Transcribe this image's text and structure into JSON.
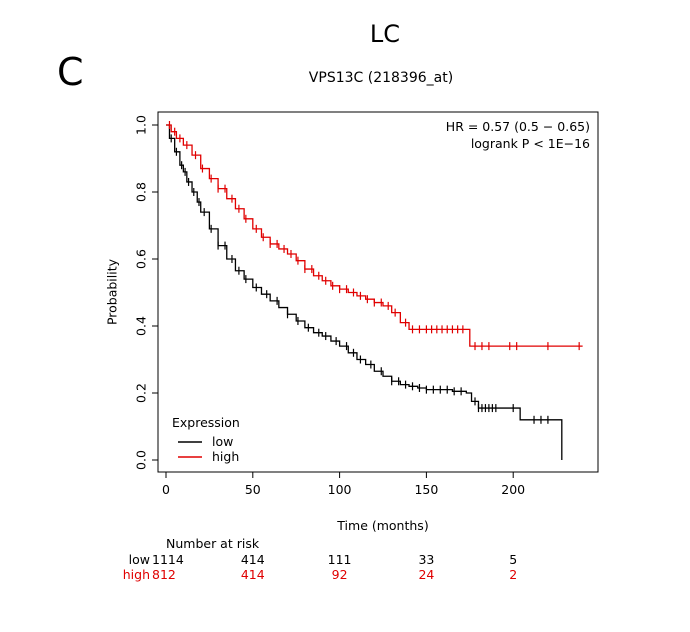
{
  "page": {
    "panel_letter": "C",
    "title": "LC"
  },
  "chart_data": {
    "type": "line",
    "title": "VPS13C (218396_at)",
    "xlabel": "Time (months)",
    "ylabel": "Probability",
    "xlim": [
      0,
      250
    ],
    "ylim": [
      0,
      1.0
    ],
    "x_ticks": [
      "0",
      "50",
      "100",
      "150",
      "200"
    ],
    "y_ticks": [
      "0.0",
      "0.2",
      "0.4",
      "0.6",
      "0.8",
      "1.0"
    ],
    "annotation": {
      "line1": "HR = 0.57 (0.5 − 0.65)",
      "line2": "logrank P < 1E−16"
    },
    "legend": {
      "title": "Expression",
      "position": "bottom-left"
    },
    "series": [
      {
        "name": "low",
        "color": "#000000",
        "points": [
          [
            0,
            1.0
          ],
          [
            2,
            0.96
          ],
          [
            5,
            0.92
          ],
          [
            8,
            0.88
          ],
          [
            10,
            0.86
          ],
          [
            12,
            0.83
          ],
          [
            15,
            0.8
          ],
          [
            18,
            0.77
          ],
          [
            20,
            0.74
          ],
          [
            25,
            0.69
          ],
          [
            30,
            0.64
          ],
          [
            35,
            0.6
          ],
          [
            40,
            0.565
          ],
          [
            45,
            0.54
          ],
          [
            50,
            0.515
          ],
          [
            55,
            0.495
          ],
          [
            60,
            0.475
          ],
          [
            65,
            0.455
          ],
          [
            70,
            0.435
          ],
          [
            75,
            0.415
          ],
          [
            80,
            0.395
          ],
          [
            85,
            0.38
          ],
          [
            90,
            0.37
          ],
          [
            95,
            0.355
          ],
          [
            100,
            0.34
          ],
          [
            105,
            0.32
          ],
          [
            110,
            0.3
          ],
          [
            115,
            0.285
          ],
          [
            120,
            0.265
          ],
          [
            125,
            0.25
          ],
          [
            130,
            0.235
          ],
          [
            135,
            0.225
          ],
          [
            140,
            0.22
          ],
          [
            145,
            0.215
          ],
          [
            150,
            0.21
          ],
          [
            160,
            0.21
          ],
          [
            165,
            0.205
          ],
          [
            173,
            0.2
          ],
          [
            176,
            0.175
          ],
          [
            180,
            0.155
          ],
          [
            202,
            0.155
          ],
          [
            204,
            0.12
          ],
          [
            228,
            0.12
          ],
          [
            228,
            0.0
          ]
        ],
        "censor_x": [
          3,
          6,
          9,
          11,
          13,
          16,
          19,
          22,
          26,
          30,
          34,
          38,
          42,
          46,
          52,
          58,
          64,
          70,
          76,
          82,
          88,
          92,
          98,
          104,
          108,
          112,
          118,
          124,
          130,
          134,
          138,
          142,
          146,
          150,
          154,
          158,
          162,
          166,
          170,
          178,
          180,
          182,
          184,
          186,
          188,
          190,
          200,
          212,
          216,
          220
        ]
      },
      {
        "name": "high",
        "color": "#e00000",
        "points": [
          [
            0,
            1.0
          ],
          [
            3,
            0.98
          ],
          [
            6,
            0.96
          ],
          [
            10,
            0.94
          ],
          [
            15,
            0.91
          ],
          [
            20,
            0.87
          ],
          [
            25,
            0.84
          ],
          [
            30,
            0.81
          ],
          [
            35,
            0.78
          ],
          [
            40,
            0.75
          ],
          [
            45,
            0.72
          ],
          [
            50,
            0.69
          ],
          [
            55,
            0.665
          ],
          [
            60,
            0.645
          ],
          [
            65,
            0.63
          ],
          [
            70,
            0.615
          ],
          [
            75,
            0.595
          ],
          [
            80,
            0.57
          ],
          [
            85,
            0.55
          ],
          [
            90,
            0.535
          ],
          [
            95,
            0.52
          ],
          [
            100,
            0.51
          ],
          [
            105,
            0.5
          ],
          [
            110,
            0.49
          ],
          [
            115,
            0.48
          ],
          [
            120,
            0.47
          ],
          [
            125,
            0.46
          ],
          [
            130,
            0.44
          ],
          [
            135,
            0.41
          ],
          [
            140,
            0.39
          ],
          [
            150,
            0.39
          ],
          [
            174,
            0.39
          ],
          [
            175,
            0.34
          ],
          [
            240,
            0.34
          ]
        ],
        "censor_x": [
          2,
          5,
          8,
          12,
          17,
          21,
          26,
          30,
          34,
          38,
          42,
          46,
          52,
          56,
          60,
          64,
          68,
          72,
          76,
          80,
          84,
          88,
          92,
          96,
          100,
          104,
          108,
          112,
          116,
          120,
          124,
          128,
          132,
          138,
          142,
          146,
          150,
          153,
          156,
          159,
          162,
          165,
          168,
          171,
          178,
          182,
          186,
          198,
          202,
          220,
          238
        ]
      }
    ],
    "number_at_risk": {
      "header": "Number at risk",
      "rows": [
        {
          "label": "low",
          "color": "#000000",
          "values": [
            "1114",
            "414",
            "111",
            "33",
            "5"
          ]
        },
        {
          "label": "high",
          "color": "#e00000",
          "values": [
            "812",
            "414",
            "92",
            "24",
            "2"
          ]
        }
      ]
    }
  }
}
